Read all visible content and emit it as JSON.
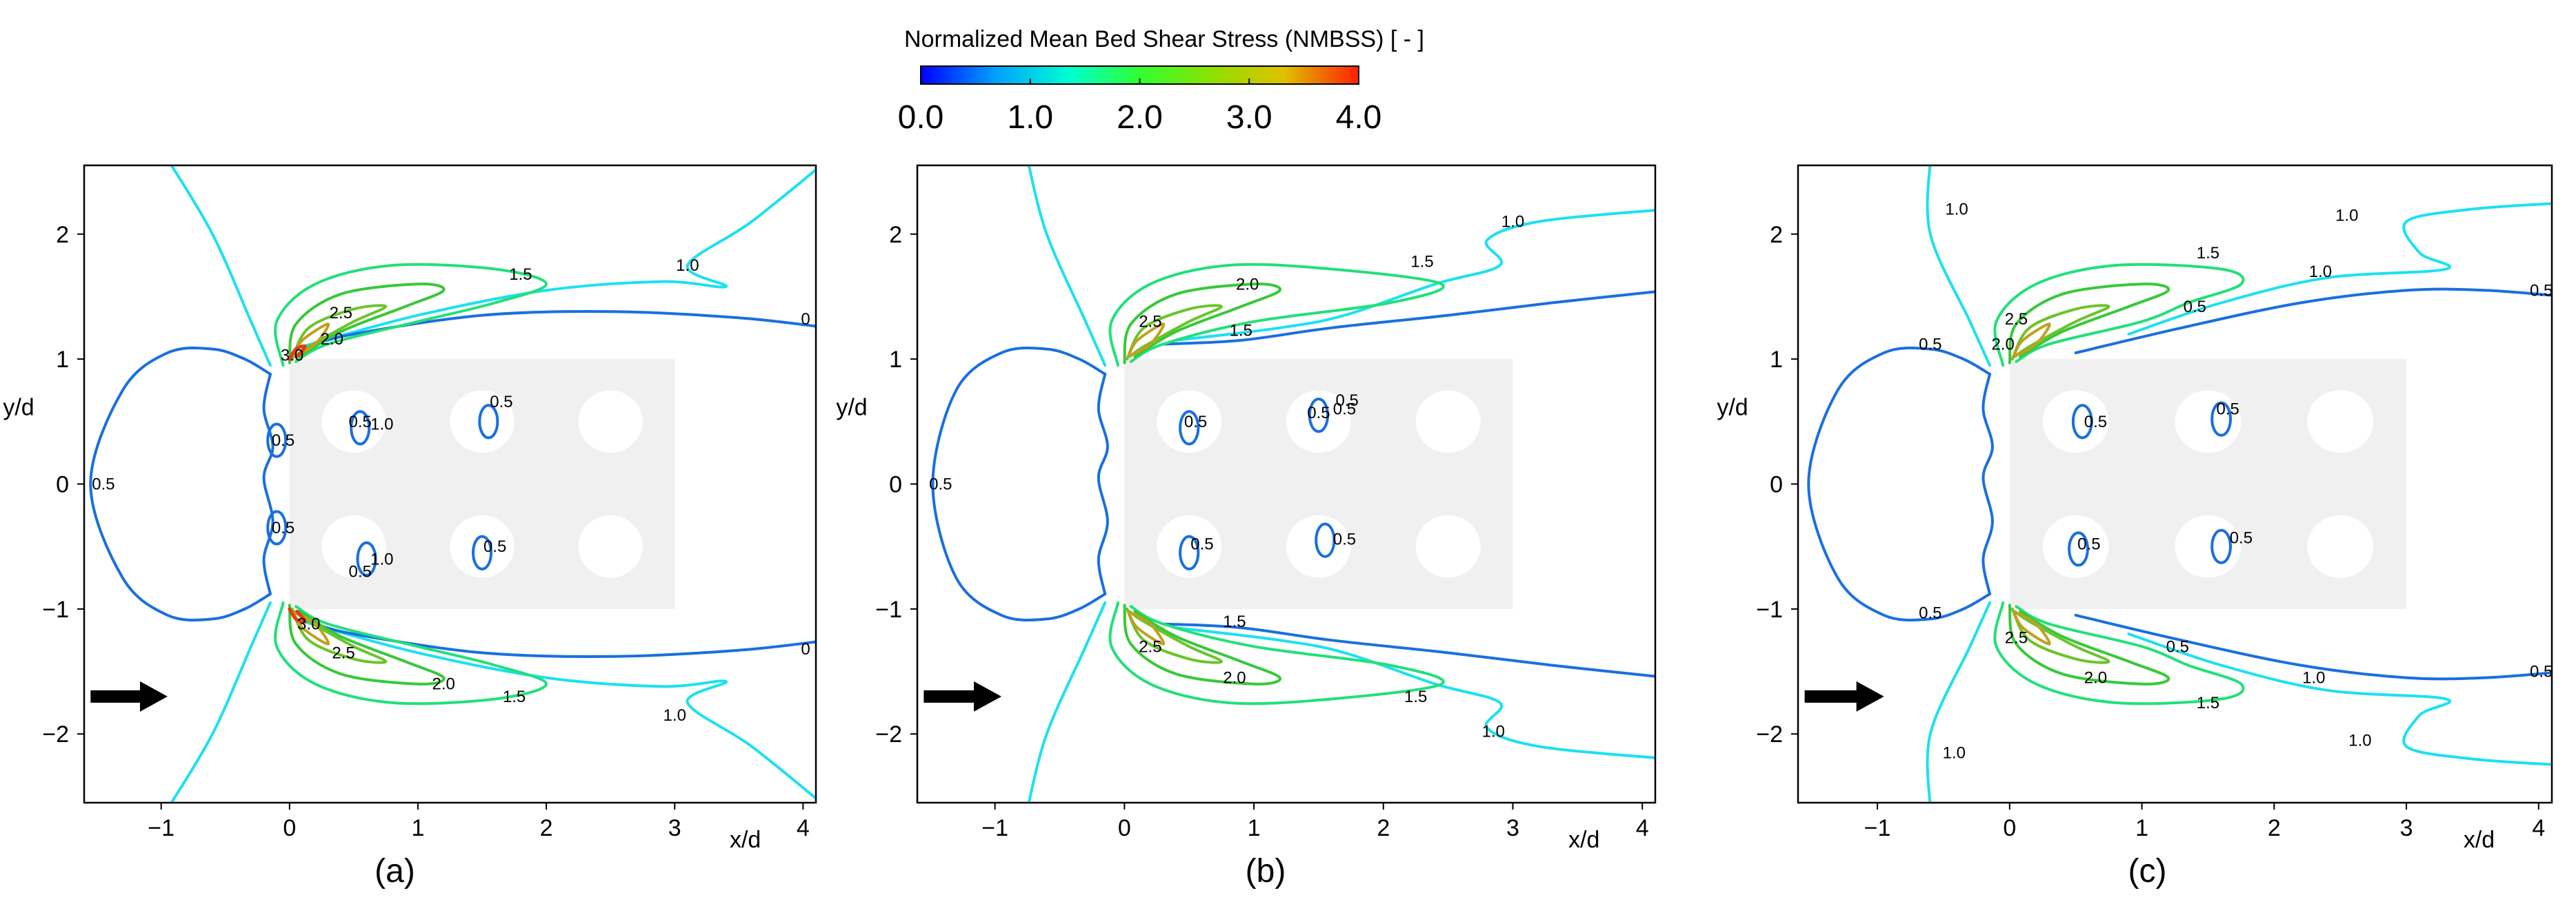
{
  "colorbar": {
    "title": "Normalized Mean Bed Shear Stress (NMBSS) [ - ]",
    "ticks": [
      "0.0",
      "1.0",
      "2.0",
      "3.0",
      "4.0"
    ],
    "range": [
      0,
      4
    ],
    "colors": [
      "#0000ff",
      "#00a0ff",
      "#00ffd0",
      "#30ff30",
      "#90e000",
      "#e0c000",
      "#ff2000"
    ]
  },
  "colors": {
    "c05": "#1a6fe0",
    "c10": "#1ee0f0",
    "c15": "#22e07a",
    "c20": "#38c83a",
    "c25": "#6ac42a",
    "c30": "#c0a020",
    "c35": "#e04010",
    "pier_region": "#f0f0f0",
    "arrow": "#000000"
  },
  "chart_data": [
    {
      "type": "contour",
      "panel_label": "(a)",
      "xlabel": "x/d",
      "ylabel": "y/d",
      "xlim": [
        -1.6,
        4.1
      ],
      "ylim": [
        -2.55,
        2.55
      ],
      "xticks": [
        "−1",
        "0",
        "1",
        "2",
        "3",
        "4"
      ],
      "yticks": [
        "2",
        "1",
        "0",
        "−1",
        "−2"
      ],
      "contour_labels": [
        {
          "text": "0.5",
          "x": -1.45,
          "y": 0.0
        },
        {
          "text": "0.5",
          "x": -0.05,
          "y": 0.35
        },
        {
          "text": "0.5",
          "x": -0.05,
          "y": -0.35
        },
        {
          "text": "0.5",
          "x": 0.55,
          "y": 0.5
        },
        {
          "text": "1.0",
          "x": 0.72,
          "y": 0.48
        },
        {
          "text": "0.5",
          "x": 1.65,
          "y": 0.66
        },
        {
          "text": "1.0",
          "x": 0.72,
          "y": -0.6
        },
        {
          "text": "0.5",
          "x": 0.55,
          "y": -0.7
        },
        {
          "text": "0.5",
          "x": 1.6,
          "y": -0.5
        },
        {
          "text": "3.0",
          "x": 0.02,
          "y": 1.03
        },
        {
          "text": "2.5",
          "x": 0.4,
          "y": 1.37
        },
        {
          "text": "2.0",
          "x": 0.33,
          "y": 1.16
        },
        {
          "text": "1.5",
          "x": 1.8,
          "y": 1.68
        },
        {
          "text": "1.0",
          "x": 3.1,
          "y": 1.75
        },
        {
          "text": "0",
          "x": 4.02,
          "y": 1.32
        },
        {
          "text": "3.0",
          "x": 0.15,
          "y": -1.12
        },
        {
          "text": "2.5",
          "x": 0.42,
          "y": -1.35
        },
        {
          "text": "2.0",
          "x": 1.2,
          "y": -1.6
        },
        {
          "text": "1.5",
          "x": 1.75,
          "y": -1.7
        },
        {
          "text": "1.0",
          "x": 3.0,
          "y": -1.85
        },
        {
          "text": "0",
          "x": 4.02,
          "y": -1.32
        }
      ]
    },
    {
      "type": "contour",
      "panel_label": "(b)",
      "xlabel": "x/d",
      "ylabel": "y/d",
      "xlim": [
        -1.6,
        4.1
      ],
      "ylim": [
        -2.55,
        2.55
      ],
      "xticks": [
        "−1",
        "0",
        "1",
        "2",
        "3",
        "4"
      ],
      "yticks": [
        "2",
        "1",
        "0",
        "−1",
        "−2"
      ],
      "contour_labels": [
        {
          "text": "0.5",
          "x": -1.42,
          "y": 0.0
        },
        {
          "text": "0.5",
          "x": 0.55,
          "y": 0.5
        },
        {
          "text": "0.5",
          "x": 1.5,
          "y": 0.57
        },
        {
          "text": "0.5",
          "x": 1.7,
          "y": 0.6
        },
        {
          "text": "0.5",
          "x": 1.72,
          "y": 0.67
        },
        {
          "text": "0.5",
          "x": 0.6,
          "y": -0.48
        },
        {
          "text": "0.5",
          "x": 1.7,
          "y": -0.44
        },
        {
          "text": "2.5",
          "x": 0.2,
          "y": 1.3
        },
        {
          "text": "2.0",
          "x": 0.95,
          "y": 1.6
        },
        {
          "text": "1.5",
          "x": 0.9,
          "y": 1.23
        },
        {
          "text": "1.5",
          "x": 2.3,
          "y": 1.78
        },
        {
          "text": "1.0",
          "x": 3.0,
          "y": 2.1
        },
        {
          "text": "2.5",
          "x": 0.2,
          "y": -1.3
        },
        {
          "text": "1.5",
          "x": 0.85,
          "y": -1.1
        },
        {
          "text": "2.0",
          "x": 0.85,
          "y": -1.55
        },
        {
          "text": "1.5",
          "x": 2.25,
          "y": -1.7
        },
        {
          "text": "1.0",
          "x": 2.85,
          "y": -1.98
        }
      ]
    },
    {
      "type": "contour",
      "panel_label": "(c)",
      "xlabel": "x/d",
      "ylabel": "y/d",
      "xlim": [
        -1.6,
        4.1
      ],
      "ylim": [
        -2.55,
        2.55
      ],
      "xticks": [
        "−1",
        "0",
        "1",
        "2",
        "3",
        "4"
      ],
      "yticks": [
        "2",
        "1",
        "0",
        "−1",
        "−2"
      ],
      "contour_labels": [
        {
          "text": "1.0",
          "x": -0.4,
          "y": 2.2
        },
        {
          "text": "0.5",
          "x": -0.6,
          "y": 1.12
        },
        {
          "text": "0.5",
          "x": -0.6,
          "y": -1.03
        },
        {
          "text": "0.5",
          "x": 0.65,
          "y": 0.5
        },
        {
          "text": "0.5",
          "x": 1.65,
          "y": 0.6
        },
        {
          "text": "0.5",
          "x": 0.6,
          "y": -0.48
        },
        {
          "text": "0.5",
          "x": 1.75,
          "y": -0.43
        },
        {
          "text": "2.5",
          "x": 0.05,
          "y": 1.32
        },
        {
          "text": "2.0",
          "x": -0.05,
          "y": 1.12
        },
        {
          "text": "1.5",
          "x": 1.5,
          "y": 1.85
        },
        {
          "text": "1.0",
          "x": 2.55,
          "y": 2.15
        },
        {
          "text": "1.0",
          "x": 2.35,
          "y": 1.7
        },
        {
          "text": "0.5",
          "x": 1.4,
          "y": 1.42
        },
        {
          "text": "0.5",
          "x": 4.02,
          "y": 1.55
        },
        {
          "text": "2.5",
          "x": 0.05,
          "y": -1.23
        },
        {
          "text": "2.0",
          "x": 0.65,
          "y": -1.55
        },
        {
          "text": "1.5",
          "x": 1.5,
          "y": -1.75
        },
        {
          "text": "0.5",
          "x": 1.27,
          "y": -1.3
        },
        {
          "text": "1.0",
          "x": 2.3,
          "y": -1.55
        },
        {
          "text": "1.0",
          "x": 2.65,
          "y": -2.05
        },
        {
          "text": "0.5",
          "x": 4.02,
          "y": -1.5
        },
        {
          "text": "1.0",
          "x": -0.42,
          "y": -2.15
        }
      ]
    }
  ]
}
